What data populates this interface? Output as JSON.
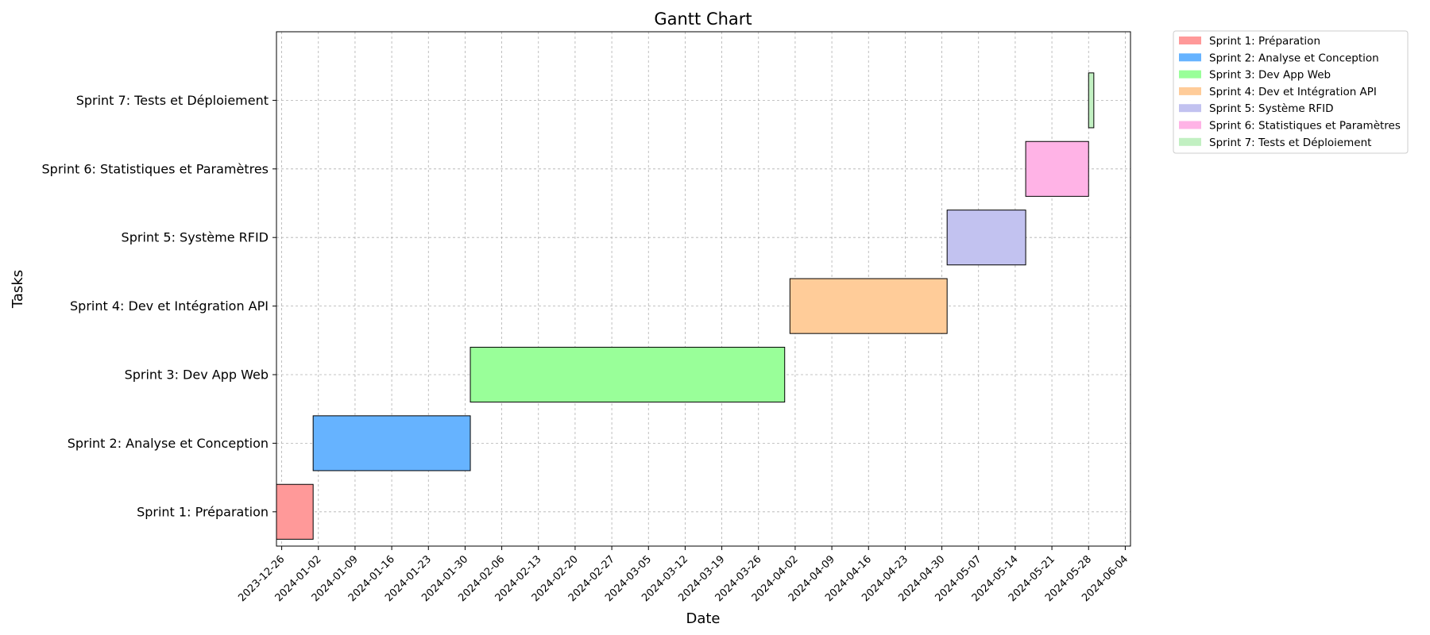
{
  "chart_data": {
    "type": "gantt",
    "title": "Gantt Chart",
    "xlabel": "Date",
    "ylabel": "Tasks",
    "grid": true,
    "legend_position": "outside-top-right",
    "x_ticks": [
      "2023-12-26",
      "2024-01-02",
      "2024-01-09",
      "2024-01-16",
      "2024-01-23",
      "2024-01-30",
      "2024-02-06",
      "2024-02-13",
      "2024-02-20",
      "2024-02-27",
      "2024-03-05",
      "2024-03-12",
      "2024-03-19",
      "2024-03-26",
      "2024-04-02",
      "2024-04-09",
      "2024-04-16",
      "2024-04-23",
      "2024-04-30",
      "2024-05-07",
      "2024-05-14",
      "2024-05-21",
      "2024-05-28",
      "2024-06-04"
    ],
    "xlim": [
      "2023-12-25",
      "2024-06-05"
    ],
    "tasks": [
      {
        "name": "Sprint 1: Préparation",
        "start": "2023-12-25",
        "end": "2024-01-01",
        "color": "#ff9999"
      },
      {
        "name": "Sprint 2: Analyse et Conception",
        "start": "2024-01-01",
        "end": "2024-01-31",
        "color": "#66b3ff"
      },
      {
        "name": "Sprint 3: Dev App Web",
        "start": "2024-01-31",
        "end": "2024-03-31",
        "color": "#99ff99"
      },
      {
        "name": "Sprint 4: Dev et Intégration API",
        "start": "2024-04-01",
        "end": "2024-05-01",
        "color": "#ffcc99"
      },
      {
        "name": "Sprint 5: Système RFID",
        "start": "2024-05-01",
        "end": "2024-05-16",
        "color": "#c2c2f0"
      },
      {
        "name": "Sprint 6: Statistiques et Paramètres",
        "start": "2024-05-16",
        "end": "2024-05-28",
        "color": "#ffb3e6"
      },
      {
        "name": "Sprint 7: Tests et Déploiement",
        "start": "2024-05-28",
        "end": "2024-05-29",
        "color": "#c2f0c2"
      }
    ]
  }
}
